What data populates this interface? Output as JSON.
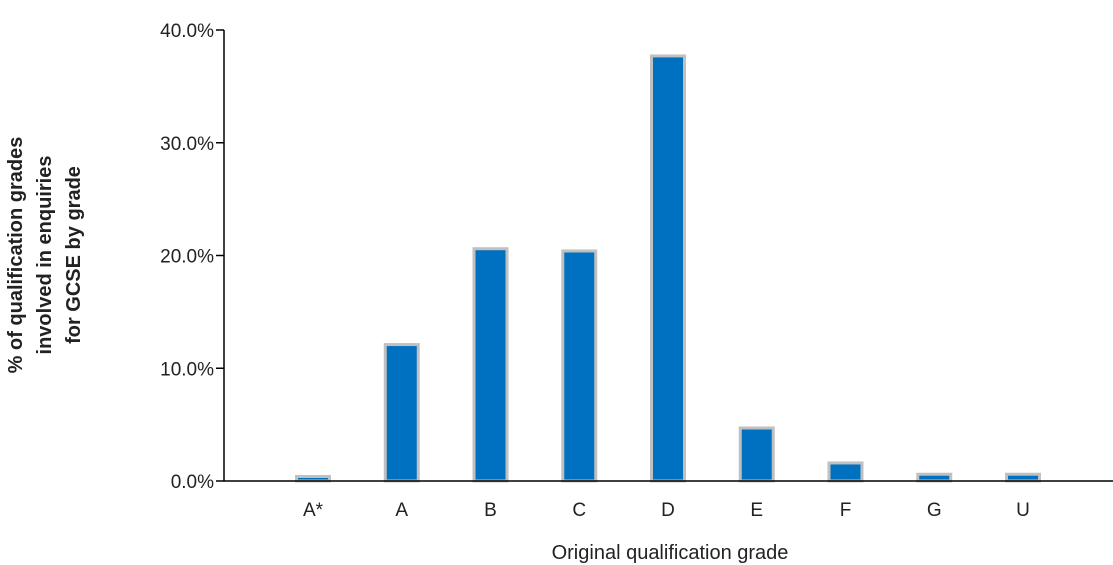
{
  "chart_data": {
    "type": "bar",
    "categories": [
      "A*",
      "A",
      "B",
      "C",
      "D",
      "E",
      "F",
      "G",
      "U"
    ],
    "values": [
      0.4,
      12.1,
      20.6,
      20.4,
      37.7,
      4.7,
      1.6,
      0.6,
      0.6
    ],
    "xlabel": "Original qualification grade",
    "ylabel_lines": [
      "% of qualification grades",
      "involved in enquiries",
      "for GCSE by grade"
    ],
    "ylim": [
      0,
      40
    ],
    "yticks": [
      "0.0%",
      "10.0%",
      "20.0%",
      "30.0%",
      "40.0%"
    ],
    "bar_color": "#0070c0",
    "bar_edge_color": "#c0c0c0",
    "axis_color": "#000000",
    "grid": false,
    "legend": "none"
  }
}
